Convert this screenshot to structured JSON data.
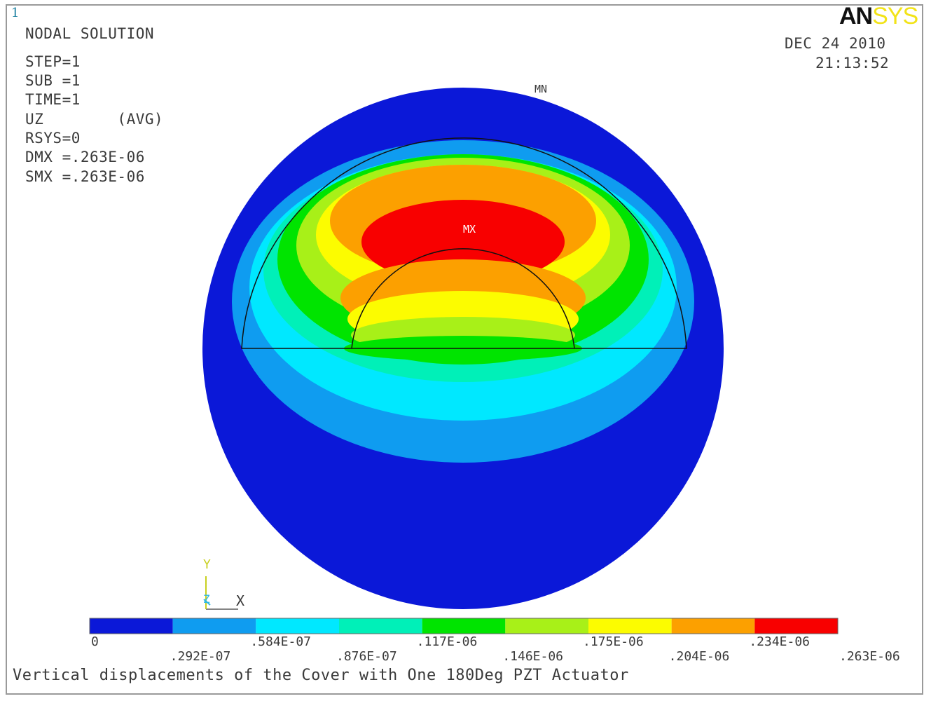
{
  "window": {
    "number": "1"
  },
  "logo": {
    "part1": "AN",
    "part2": "SYS"
  },
  "header": {
    "title": "NODAL SOLUTION",
    "lines": [
      "STEP=1",
      "SUB =1",
      "TIME=1",
      "UZ        (AVG)",
      "RSYS=0",
      "DMX =.263E-06",
      "SMX =.263E-06"
    ]
  },
  "timestamp": {
    "date": "DEC 24 2010",
    "time": "21:13:52"
  },
  "markers": {
    "min": "MN",
    "max": "MX"
  },
  "axes": {
    "y": "Y",
    "x": "X",
    "z": "Z"
  },
  "legend": {
    "colors": [
      "#0b18d8",
      "#0f9cf0",
      "#00e8ff",
      "#00f0b8",
      "#00e400",
      "#a8f018",
      "#fcfc00",
      "#fca000",
      "#f80000"
    ],
    "ticks_upper": [
      "0",
      ".584E-07",
      ".117E-06",
      ".175E-06",
      ".234E-06"
    ],
    "ticks_lower": [
      ".292E-07",
      ".876E-07",
      ".146E-06",
      ".204E-06",
      ".263E-06"
    ]
  },
  "caption": "Vertical displacements of the Cover with One 180Deg PZT Actuator",
  "colors": {
    "outline": "#111111",
    "frame": "#9a9a9a"
  }
}
